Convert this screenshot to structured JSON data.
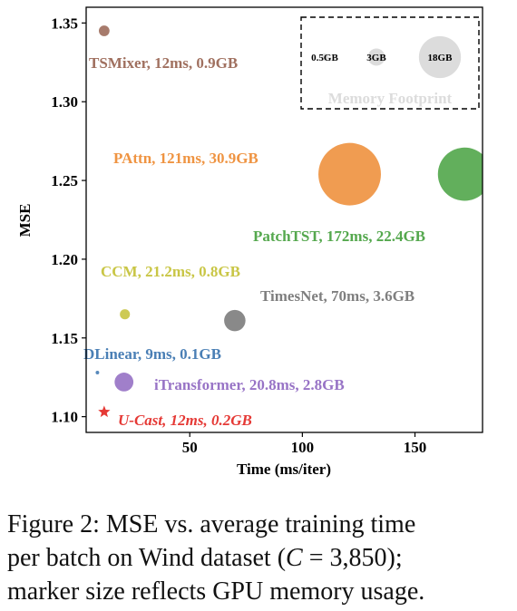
{
  "chart_data": {
    "type": "scatter",
    "xlabel": "Time (ms/iter)",
    "ylabel": "MSE",
    "xlim": [
      4,
      180
    ],
    "ylim": [
      1.09,
      1.36
    ],
    "xticks": [
      50,
      100,
      150
    ],
    "yticks": [
      1.1,
      1.15,
      1.2,
      1.25,
      1.3,
      1.35
    ],
    "grid": false,
    "legend": {
      "title": "Memory Footprint",
      "placement": "top-right",
      "entries": [
        {
          "label": "0.5GB",
          "memory_gb": 0.5
        },
        {
          "label": "3GB",
          "memory_gb": 3
        },
        {
          "label": "18GB",
          "memory_gb": 18
        }
      ]
    },
    "points": [
      {
        "label": "TSMixer, 12ms, 0.9GB",
        "x": 12,
        "y": 1.345,
        "memory_gb": 0.9,
        "color": "#A0705F"
      },
      {
        "label": "PAttn, 121ms, 30.9GB",
        "x": 121,
        "y": 1.254,
        "memory_gb": 30.9,
        "color": "#EF9442"
      },
      {
        "label": "PatchTST, 172ms, 22.4GB",
        "x": 172,
        "y": 1.254,
        "memory_gb": 22.4,
        "color": "#55A84E"
      },
      {
        "label": "CCM, 21.2ms, 0.8GB",
        "x": 21.2,
        "y": 1.165,
        "memory_gb": 0.8,
        "color": "#C9C646"
      },
      {
        "label": "TimesNet, 70ms, 3.6GB",
        "x": 70,
        "y": 1.161,
        "memory_gb": 3.6,
        "color": "#7F7F7F"
      },
      {
        "label": "DLinear, 9ms, 0.1GB",
        "x": 9,
        "y": 1.128,
        "memory_gb": 0.1,
        "color": "#4A7FB5"
      },
      {
        "label": "iTransformer, 20.8ms, 2.8GB",
        "x": 20.8,
        "y": 1.122,
        "memory_gb": 2.8,
        "color": "#9874C6"
      },
      {
        "label": "U-Cast,  12ms, 0.2GB",
        "x": 12,
        "y": 1.103,
        "memory_gb": 0.2,
        "color": "#E53935",
        "marker": "star"
      }
    ]
  },
  "caption": {
    "line1": "Figure 2: MSE vs. average training time",
    "line2": "per batch on Wind dataset (C = 3,850);",
    "line3": "marker size reflects GPU memory usage."
  }
}
